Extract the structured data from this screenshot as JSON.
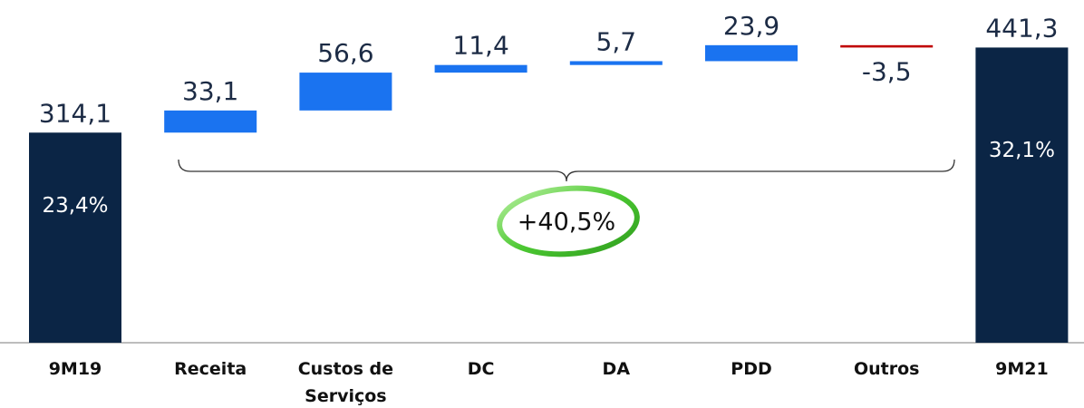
{
  "chart_data": {
    "type": "waterfall",
    "categories": [
      "9M19",
      "Receita",
      "Custos de Serviços",
      "DC",
      "DA",
      "PDD",
      "Outros",
      "9M21"
    ],
    "values": [
      314.1,
      33.1,
      56.6,
      11.4,
      5.7,
      23.9,
      -3.5,
      441.3
    ],
    "value_labels": [
      "314,1",
      "33,1",
      "56,6",
      "11,4",
      "5,7",
      "23,9",
      "-3,5",
      "441,3"
    ],
    "bar_kinds": [
      "total",
      "delta",
      "delta",
      "delta",
      "delta",
      "delta",
      "delta",
      "total"
    ],
    "colors": [
      "#0b2545",
      "#1a73f0",
      "#1a73f0",
      "#1a73f0",
      "#1a73f0",
      "#1a73f0",
      "#c00000",
      "#0b2545"
    ],
    "inner_labels": [
      "23,4%",
      null,
      null,
      null,
      null,
      null,
      null,
      "32,1%"
    ],
    "annotation": "+40,5%",
    "ylim": [
      0,
      450
    ]
  }
}
